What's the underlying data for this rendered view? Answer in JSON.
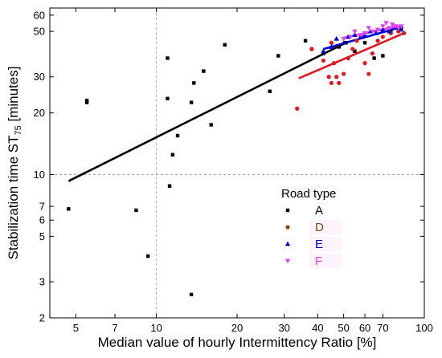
{
  "chart_data": {
    "type": "scatter",
    "title": "",
    "xlabel": "Median value of hourly Intermittency Ratio [%]",
    "ylabel_main": "Stabilization time  ST",
    "ylabel_sub": "75",
    "ylabel_unit": " [minutes]",
    "xscale": "log",
    "yscale": "log",
    "xlim": [
      4,
      100
    ],
    "ylim": [
      2,
      65
    ],
    "xticks": [
      5,
      7,
      10,
      20,
      30,
      40,
      50,
      60,
      70,
      100
    ],
    "xtick_labels": [
      "5",
      "7",
      "10",
      "20",
      "30",
      "40",
      "50",
      "60",
      "70",
      "100"
    ],
    "yticks": [
      2,
      3,
      5,
      6,
      7,
      10,
      20,
      30,
      50,
      60
    ],
    "ytick_labels": [
      "2",
      "3",
      "5",
      "6",
      "7",
      "10",
      "20",
      "30",
      "50",
      "60"
    ],
    "reference_lines": {
      "x": 10,
      "y": 10
    },
    "legend": {
      "title": "Road type",
      "placement": "center-right",
      "entries": [
        {
          "label": "A",
          "color": "#000000",
          "marker": "square"
        },
        {
          "label": "D",
          "color": "#8B4513",
          "marker": "circle"
        },
        {
          "label": "E",
          "color": "#0000DD",
          "marker": "triangle-up"
        },
        {
          "label": "F",
          "color": "#E040FB",
          "marker": "triangle-down"
        }
      ]
    },
    "series": [
      {
        "name": "A",
        "color": "#000000",
        "marker": "square",
        "points": [
          [
            4.7,
            6.8
          ],
          [
            5.5,
            22.5
          ],
          [
            5.5,
            23
          ],
          [
            8.4,
            6.7
          ],
          [
            9.3,
            4
          ],
          [
            11,
            37
          ],
          [
            11,
            23.5
          ],
          [
            11.2,
            8.8
          ],
          [
            11.5,
            12.5
          ],
          [
            12,
            15.5
          ],
          [
            13.5,
            2.6
          ],
          [
            13.5,
            22.5
          ],
          [
            13.8,
            28
          ],
          [
            15,
            32
          ],
          [
            16,
            17.5
          ],
          [
            18,
            43
          ],
          [
            26.5,
            25.5
          ],
          [
            28.5,
            38
          ],
          [
            36,
            45
          ],
          [
            38,
            41
          ],
          [
            42,
            39
          ],
          [
            48,
            42
          ],
          [
            51,
            44
          ],
          [
            55,
            40
          ],
          [
            60,
            44
          ],
          [
            65,
            37
          ],
          [
            70,
            38
          ],
          [
            75,
            50
          ],
          [
            82,
            52
          ]
        ],
        "fit": {
          "x": [
            4.7,
            50
          ],
          "y": [
            9.3,
            43.5
          ]
        }
      },
      {
        "name": "D",
        "color": "#E8141E",
        "marker": "circle",
        "points": [
          [
            33.5,
            21
          ],
          [
            38,
            41
          ],
          [
            42,
            36
          ],
          [
            44,
            30
          ],
          [
            45,
            44
          ],
          [
            45,
            28
          ],
          [
            46,
            35
          ],
          [
            47,
            30
          ],
          [
            48,
            28
          ],
          [
            50,
            31
          ],
          [
            52,
            37
          ],
          [
            54,
            41
          ],
          [
            56,
            45
          ],
          [
            58,
            47
          ],
          [
            60,
            35
          ],
          [
            62,
            31
          ],
          [
            64,
            39
          ],
          [
            67,
            45
          ],
          [
            70,
            47
          ],
          [
            75,
            49
          ],
          [
            80,
            50
          ],
          [
            84,
            49
          ]
        ],
        "fit": {
          "x": [
            34,
            84
          ],
          "y": [
            29.5,
            49
          ]
        }
      },
      {
        "name": "E",
        "color": "#0000DD",
        "marker": "triangle-up",
        "points": [
          [
            42,
            40
          ],
          [
            45,
            42
          ],
          [
            47,
            46
          ],
          [
            50,
            44
          ],
          [
            52,
            47
          ],
          [
            55,
            48
          ],
          [
            58,
            47
          ],
          [
            60,
            48
          ],
          [
            63,
            50
          ],
          [
            66,
            49
          ],
          [
            70,
            51
          ],
          [
            74,
            50
          ],
          [
            78,
            52
          ],
          [
            82,
            51
          ]
        ],
        "fit": {
          "x": [
            42,
            82
          ],
          "y": [
            41,
            52.5
          ]
        }
      },
      {
        "name": "F",
        "color": "#E040FB",
        "marker": "triangle-down",
        "points": [
          [
            50,
            46
          ],
          [
            53,
            47
          ],
          [
            55,
            50
          ],
          [
            58,
            48
          ],
          [
            60,
            49
          ],
          [
            62,
            52
          ],
          [
            64,
            50
          ],
          [
            67,
            51
          ],
          [
            70,
            53
          ],
          [
            72,
            55
          ],
          [
            74,
            52
          ],
          [
            76,
            54
          ],
          [
            78,
            53
          ],
          [
            80,
            52
          ],
          [
            82,
            53
          ]
        ],
        "fit": {
          "x": [
            50,
            82
          ],
          "y": [
            46.5,
            53.5
          ]
        }
      }
    ]
  }
}
